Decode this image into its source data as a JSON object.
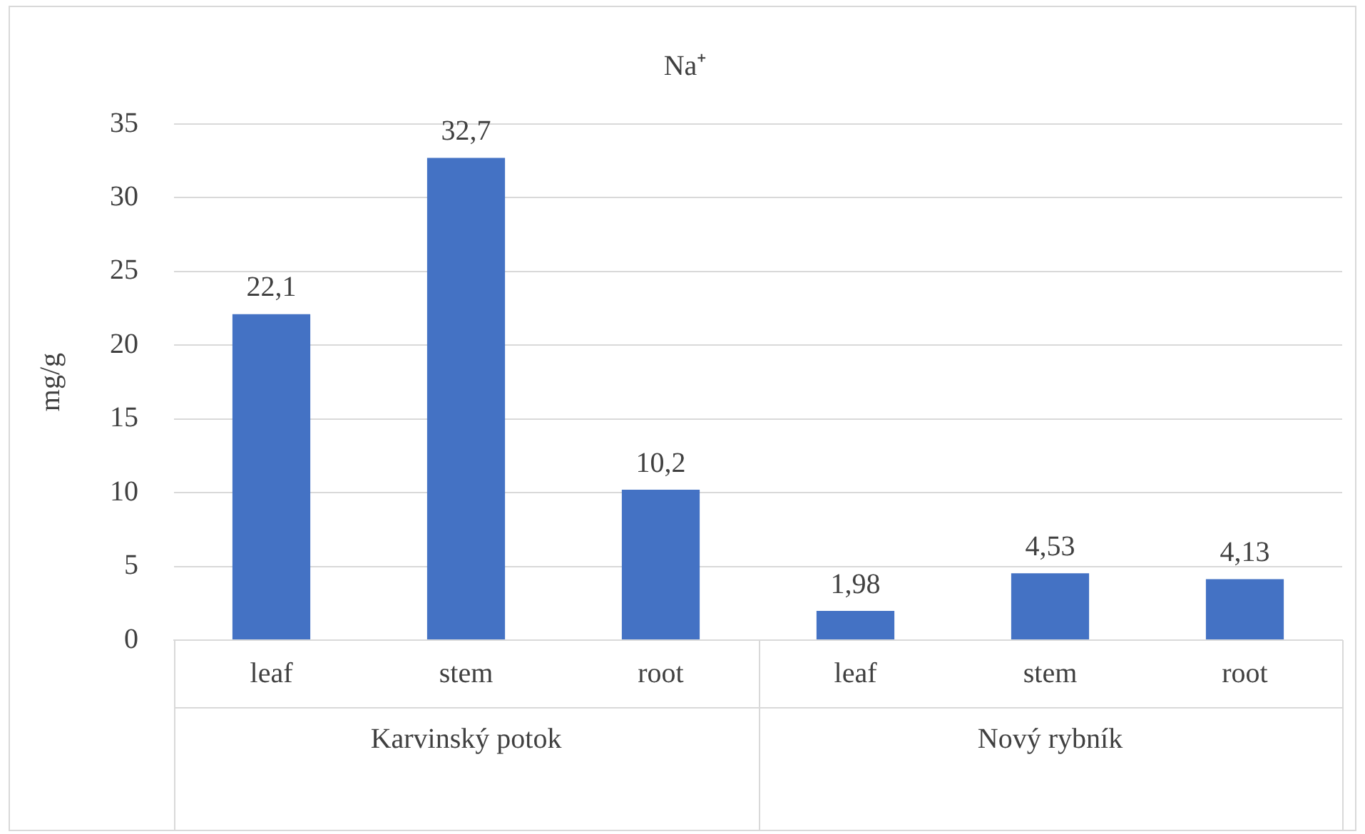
{
  "chart_data": {
    "type": "bar",
    "title": "Na⁺",
    "ylabel": "mg/g",
    "categories": [
      "leaf",
      "stem",
      "root",
      "leaf",
      "stem",
      "root"
    ],
    "values": [
      22.1,
      32.7,
      10.2,
      1.98,
      4.53,
      4.13
    ],
    "value_labels": [
      "22,1",
      "32,7",
      "10,2",
      "1,98",
      "4,53",
      "4,13"
    ],
    "color": "#4472c4",
    "ylim": [
      0,
      35
    ],
    "yticks": [
      0,
      5,
      10,
      15,
      20,
      25,
      30,
      35
    ],
    "grid": "y",
    "legend": false,
    "annotations": [
      "Karvinský potok",
      "Nový rybník"
    ]
  }
}
